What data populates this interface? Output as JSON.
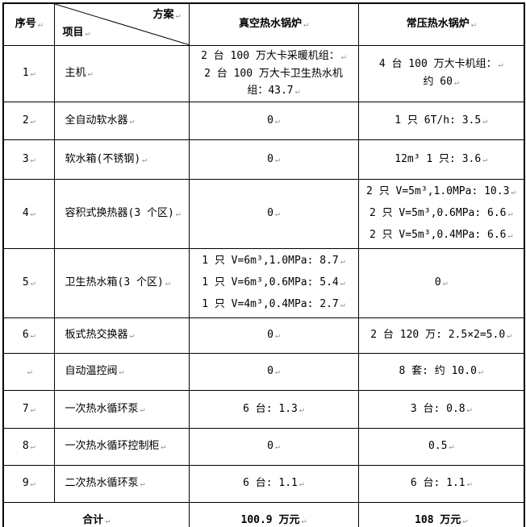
{
  "marks": {
    "pilcrow": "↵"
  },
  "header": {
    "col_no": "序号",
    "corner_top": "方案",
    "corner_bottom": "项目",
    "col_vacuum": "真空热水锅炉",
    "col_atmos": "常压热水锅炉"
  },
  "rows": [
    {
      "no": "1",
      "item": "主机",
      "vacuum": [
        {
          "t": "2 台 100 万大卡采暖机组：",
          "m": true
        },
        {
          "t": "2 台 100 万大卡卫生热水机",
          "m": false
        },
        {
          "t": "组：43.7",
          "m": true
        }
      ],
      "atmos": [
        {
          "t": "4 台 100 万大卡机组：",
          "m": true
        },
        {
          "t": "约 60",
          "m": true
        }
      ]
    },
    {
      "no": "2",
      "item": "全自动软水器",
      "vacuum": [
        {
          "t": "0",
          "m": true
        }
      ],
      "atmos": [
        {
          "t": "1 只 6T/h: 3.5",
          "m": true
        }
      ]
    },
    {
      "no": "3",
      "item": "软水箱(不锈钢)",
      "vacuum": [
        {
          "t": "0",
          "m": true
        }
      ],
      "atmos": [
        {
          "t": "12m³ 1 只: 3.6",
          "m": true
        }
      ]
    },
    {
      "no": "4",
      "item": "容积式换热器(3 个区)",
      "vacuum": [
        {
          "t": "0",
          "m": true
        }
      ],
      "atmos": [
        {
          "t": "2 只 V=5m³,1.0MPa: 10.3",
          "m": true
        },
        {
          "t": "2 只 V=5m³,0.6MPa: 6.6",
          "m": true
        },
        {
          "t": "2 只 V=5m³,0.4MPa: 6.6",
          "m": true
        }
      ]
    },
    {
      "no": "5",
      "item": "卫生热水箱(3 个区)",
      "vacuum": [
        {
          "t": "1 只 V=6m³,1.0MPa: 8.7",
          "m": true
        },
        {
          "t": "1 只 V=6m³,0.6MPa: 5.4",
          "m": true
        },
        {
          "t": "1 只 V=4m³,0.4MPa: 2.7",
          "m": true
        }
      ],
      "atmos": [
        {
          "t": "0",
          "m": true
        }
      ]
    },
    {
      "no": "6",
      "item": "板式热交换器",
      "vacuum": [
        {
          "t": "0",
          "m": true
        }
      ],
      "atmos": [
        {
          "t": "2 台 120 万: 2.5×2=5.0",
          "m": true
        }
      ]
    },
    {
      "no": "",
      "item": "自动温控阀",
      "vacuum": [
        {
          "t": "0",
          "m": true
        }
      ],
      "atmos": [
        {
          "t": "8 套: 约 10.0",
          "m": true
        }
      ]
    },
    {
      "no": "7",
      "item": "一次热水循环泵",
      "vacuum": [
        {
          "t": "6 台: 1.3",
          "m": true
        }
      ],
      "atmos": [
        {
          "t": "3 台: 0.8",
          "m": true
        }
      ]
    },
    {
      "no": "8",
      "item": "一次热水循环控制柜",
      "vacuum": [
        {
          "t": "0",
          "m": true
        }
      ],
      "atmos": [
        {
          "t": "0.5",
          "m": true
        }
      ]
    },
    {
      "no": "9",
      "item": "二次热水循环泵",
      "vacuum": [
        {
          "t": "6 台: 1.1",
          "m": true
        }
      ],
      "atmos": [
        {
          "t": "6 台: 1.1",
          "m": true
        }
      ]
    }
  ],
  "total": {
    "label": "合计",
    "vacuum": "100.9 万元",
    "atmos": "108 万元"
  }
}
